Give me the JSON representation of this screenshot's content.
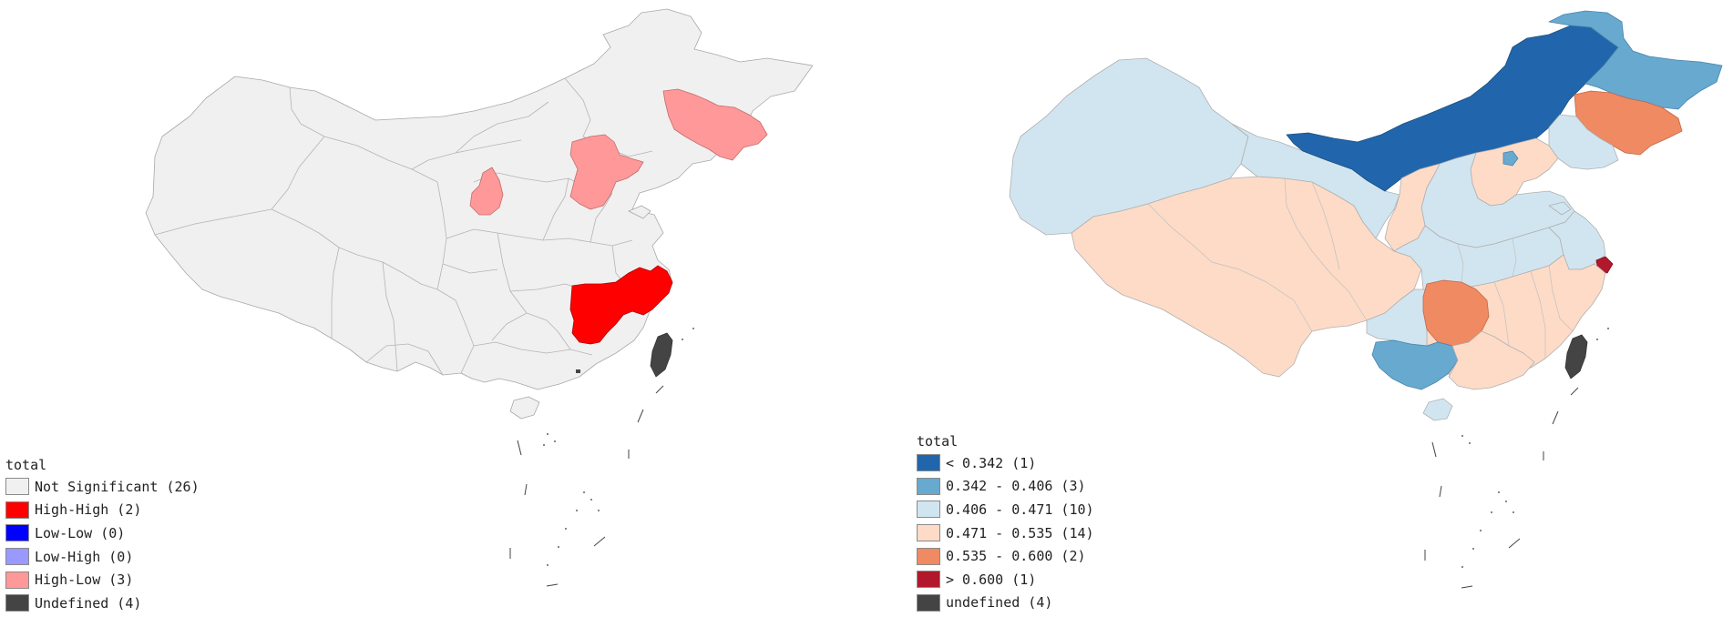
{
  "colors": {
    "not_significant": "#f0f0f0",
    "high_high": "#ff0000",
    "low_low": "#0000ff",
    "low_high": "#9999ff",
    "high_low": "#ff9999",
    "undefined": "#444444",
    "c1": "#2166ac",
    "c2": "#67a9cf",
    "c3": "#d1e5f0",
    "c4": "#fddbc7",
    "c5": "#ef8a62",
    "c6": "#b2182b",
    "border": "#a8a8a8"
  },
  "lisa_map": {
    "legend": {
      "title": "total",
      "items": [
        {
          "label": "Not Significant (26)",
          "color": "#f0f0f0"
        },
        {
          "label": "High-High (2)",
          "color": "#ff0000"
        },
        {
          "label": "Low-Low (0)",
          "color": "#0000ff"
        },
        {
          "label": "Low-High (0)",
          "color": "#9999ff"
        },
        {
          "label": "High-Low (3)",
          "color": "#ff9999"
        },
        {
          "label": "Undefined (4)",
          "color": "#444444"
        }
      ]
    }
  },
  "quantile_map": {
    "legend": {
      "title": "total",
      "items": [
        {
          "label": "< 0.342 (1)",
          "color": "#2166ac"
        },
        {
          "label": "0.342 - 0.406 (3)",
          "color": "#67a9cf"
        },
        {
          "label": "0.406 - 0.471 (10)",
          "color": "#d1e5f0"
        },
        {
          "label": "0.471 - 0.535 (14)",
          "color": "#fddbc7"
        },
        {
          "label": "0.535 - 0.600 (2)",
          "color": "#ef8a62"
        },
        {
          "label": "> 0.600 (1)",
          "color": "#b2182b"
        },
        {
          "label": "undefined (4)",
          "color": "#444444"
        }
      ]
    }
  }
}
